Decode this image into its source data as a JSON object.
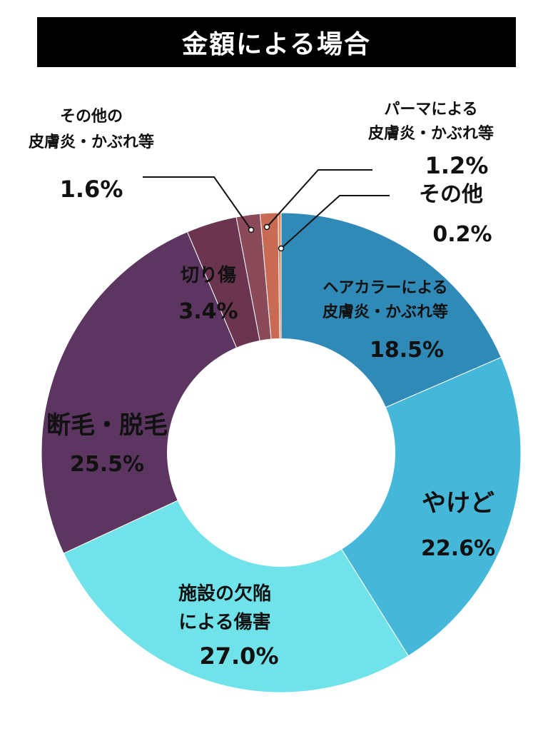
{
  "title": "金額による場合",
  "chart_data": {
    "type": "pie",
    "style": "donut",
    "title": "金額による場合",
    "slices": [
      {
        "label": [
          "ヘアカラーによる",
          "皮膚炎・かぶれ等"
        ],
        "value": 18.5,
        "value_text": "18.5%",
        "color": "#2f8ab8"
      },
      {
        "label": [
          "やけど"
        ],
        "value": 22.6,
        "value_text": "22.6%",
        "color": "#45b8d9"
      },
      {
        "label": [
          "施設の欠陥",
          "による傷害"
        ],
        "value": 27.0,
        "value_text": "27.0%",
        "color": "#6fe3e9"
      },
      {
        "label": [
          "断毛・脱毛"
        ],
        "value": 25.5,
        "value_text": "25.5%",
        "color": "#5c3560"
      },
      {
        "label": [
          "切り傷"
        ],
        "value": 3.4,
        "value_text": "3.4%",
        "color": "#6b3550"
      },
      {
        "label": [
          "その他の",
          "皮膚炎・かぶれ等"
        ],
        "value": 1.6,
        "value_text": "1.6%",
        "color": "#8a4a5a"
      },
      {
        "label": [
          "パーマによる",
          "皮膚炎・かぶれ等"
        ],
        "value": 1.2,
        "value_text": "1.2%",
        "color": "#c96a55"
      },
      {
        "label": [
          "その他"
        ],
        "value": 0.2,
        "value_text": "0.2%",
        "color": "#e8885a"
      }
    ]
  }
}
